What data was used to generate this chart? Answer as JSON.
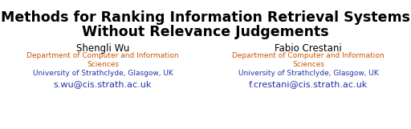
{
  "title_line1": "Methods for Ranking Information Retrieval Systems",
  "title_line2": "Without Relevance Judgements",
  "title_color": "#000000",
  "title_fontsize": 12.5,
  "title_fontweight": "bold",
  "author1_name": "Shengli Wu",
  "author1_dept": "Department of Computer and Information\nSciences",
  "author1_univ": "University of Strathclyde, Glasgow, UK",
  "author1_email": "s.wu@cis.strath.ac.uk",
  "author2_name": "Fabio Crestani",
  "author2_dept": "Department of Computer and Information\nSciences",
  "author2_univ": "University of Strathclyde, Glasgow, UK",
  "author2_email": "f.crestani@cis.strath.ac.uk",
  "author_name_color": "#000000",
  "author_name_fontsize": 8.5,
  "dept_color": "#cc5500",
  "dept_fontsize": 6.5,
  "univ_color": "#2233aa",
  "univ_fontsize": 6.5,
  "email_color": "#2233aa",
  "email_fontsize": 8.0,
  "background_color": "#ffffff"
}
